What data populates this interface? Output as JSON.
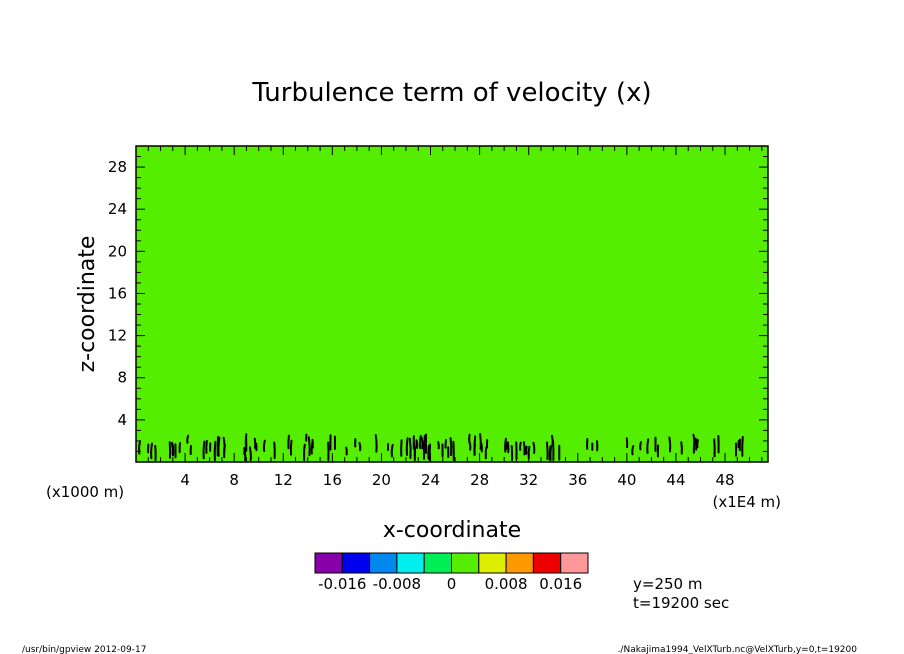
{
  "chart_data": {
    "type": "heatmap",
    "title": "Turbulence term of velocity (x)",
    "xlabel": "x-coordinate",
    "ylabel": "z-coordinate",
    "x_units_left": "(x1000 m)",
    "x_units_right": "(x1E4 m)",
    "xlim": [
      0,
      51.5
    ],
    "ylim": [
      0,
      30
    ],
    "x_ticks": [
      "4",
      "8",
      "12",
      "16",
      "20",
      "24",
      "28",
      "32",
      "36",
      "40",
      "44",
      "48"
    ],
    "y_ticks": [
      "4",
      "8",
      "12",
      "16",
      "20",
      "24",
      "28"
    ],
    "field_color": "#55ee00",
    "colorbar": {
      "colors": [
        "#8800aa",
        "#0000ee",
        "#0088ee",
        "#00eeee",
        "#00ee55",
        "#55ee00",
        "#ddee00",
        "#ff9900",
        "#ee0000",
        "#ff9999"
      ],
      "labels": [
        "-0.016",
        "-0.008",
        "0",
        "0.008",
        "0.016"
      ]
    },
    "annotations": [
      "y=250 m",
      "t=19200 sec"
    ],
    "footer_left": "/usr/bin/gpview  2012-09-17",
    "footer_right": "./Nakajima1994_VelXTurb.nc@VelXTurb,y=0,t=19200"
  }
}
